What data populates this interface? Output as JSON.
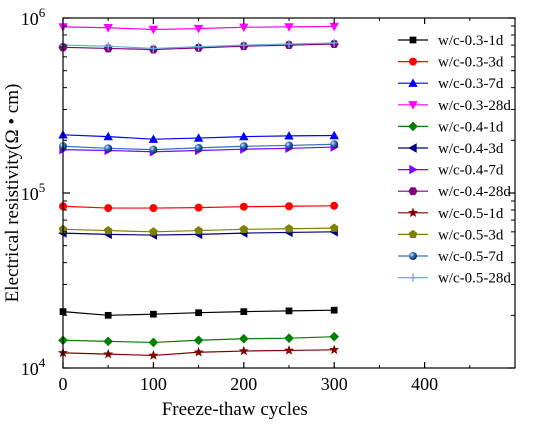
{
  "chart_data": {
    "type": "line",
    "title": "",
    "xlabel": "Freeze-thaw cycles",
    "ylabel": "Electrical resistivity(Ω • cm)",
    "xlim": [
      0,
      500
    ],
    "ylim": [
      10000,
      1000000
    ],
    "yscale": "log",
    "xticks": [
      0,
      100,
      200,
      300,
      400
    ],
    "xtick_labels": [
      "0",
      "100",
      "200",
      "300",
      "400"
    ],
    "ytick_labels": [
      {
        "value": 10000,
        "base": "10",
        "exp": "4"
      },
      {
        "value": 100000,
        "base": "10",
        "exp": "5"
      },
      {
        "value": 1000000,
        "base": "10",
        "exp": "6"
      }
    ],
    "grid": false,
    "legend_position": "right",
    "x": [
      0,
      50,
      100,
      150,
      200,
      250,
      300
    ],
    "series": [
      {
        "name": "w/c-0.3-1d",
        "color": "#000000",
        "marker": "square",
        "values": [
          21000,
          20000,
          20300,
          20700,
          21000,
          21200,
          21400
        ]
      },
      {
        "name": "w/c-0.3-3d",
        "color": "#ff0000",
        "marker": "circle",
        "values": [
          84000,
          82000,
          82000,
          82500,
          83500,
          84000,
          84500
        ]
      },
      {
        "name": "w/c-0.3-7d",
        "color": "#0000ff",
        "marker": "triangle-up",
        "values": [
          215000,
          210000,
          203000,
          206000,
          210000,
          212000,
          213000
        ]
      },
      {
        "name": "w/c-0.3-28d",
        "color": "#ff00ff",
        "marker": "triangle-down",
        "values": [
          890000,
          880000,
          860000,
          870000,
          885000,
          890000,
          895000
        ]
      },
      {
        "name": "w/c-0.4-1d",
        "color": "#008000",
        "marker": "diamond",
        "values": [
          14400,
          14200,
          14000,
          14400,
          14700,
          14800,
          15100
        ]
      },
      {
        "name": "w/c-0.4-3d",
        "color": "#000080",
        "marker": "triangle-left",
        "values": [
          59000,
          58000,
          57500,
          58000,
          59000,
          59500,
          60000
        ]
      },
      {
        "name": "w/c-0.4-7d",
        "color": "#8000ff",
        "marker": "triangle-right",
        "values": [
          177000,
          175000,
          172000,
          175000,
          178000,
          180000,
          183000
        ]
      },
      {
        "name": "w/c-0.4-28d",
        "color": "#800080",
        "marker": "hexagon",
        "values": [
          680000,
          670000,
          660000,
          675000,
          690000,
          700000,
          710000
        ]
      },
      {
        "name": "w/c-0.5-1d",
        "color": "#800000",
        "marker": "star",
        "values": [
          12200,
          12000,
          11800,
          12300,
          12500,
          12600,
          12700
        ]
      },
      {
        "name": "w/c-0.5-3d",
        "color": "#808000",
        "marker": "pentagon",
        "values": [
          62000,
          61000,
          60000,
          61000,
          62000,
          62500,
          63000
        ]
      },
      {
        "name": "w/c-0.5-7d",
        "color": "#3070c0",
        "marker": "sphere",
        "values": [
          185000,
          180000,
          177000,
          181000,
          185000,
          187000,
          190000
        ]
      },
      {
        "name": "w/c-0.5-28d",
        "color": "#60b0d8",
        "marker": "plus",
        "values": [
          700000,
          690000,
          670000,
          685000,
          700000,
          710000,
          720000
        ]
      }
    ]
  }
}
